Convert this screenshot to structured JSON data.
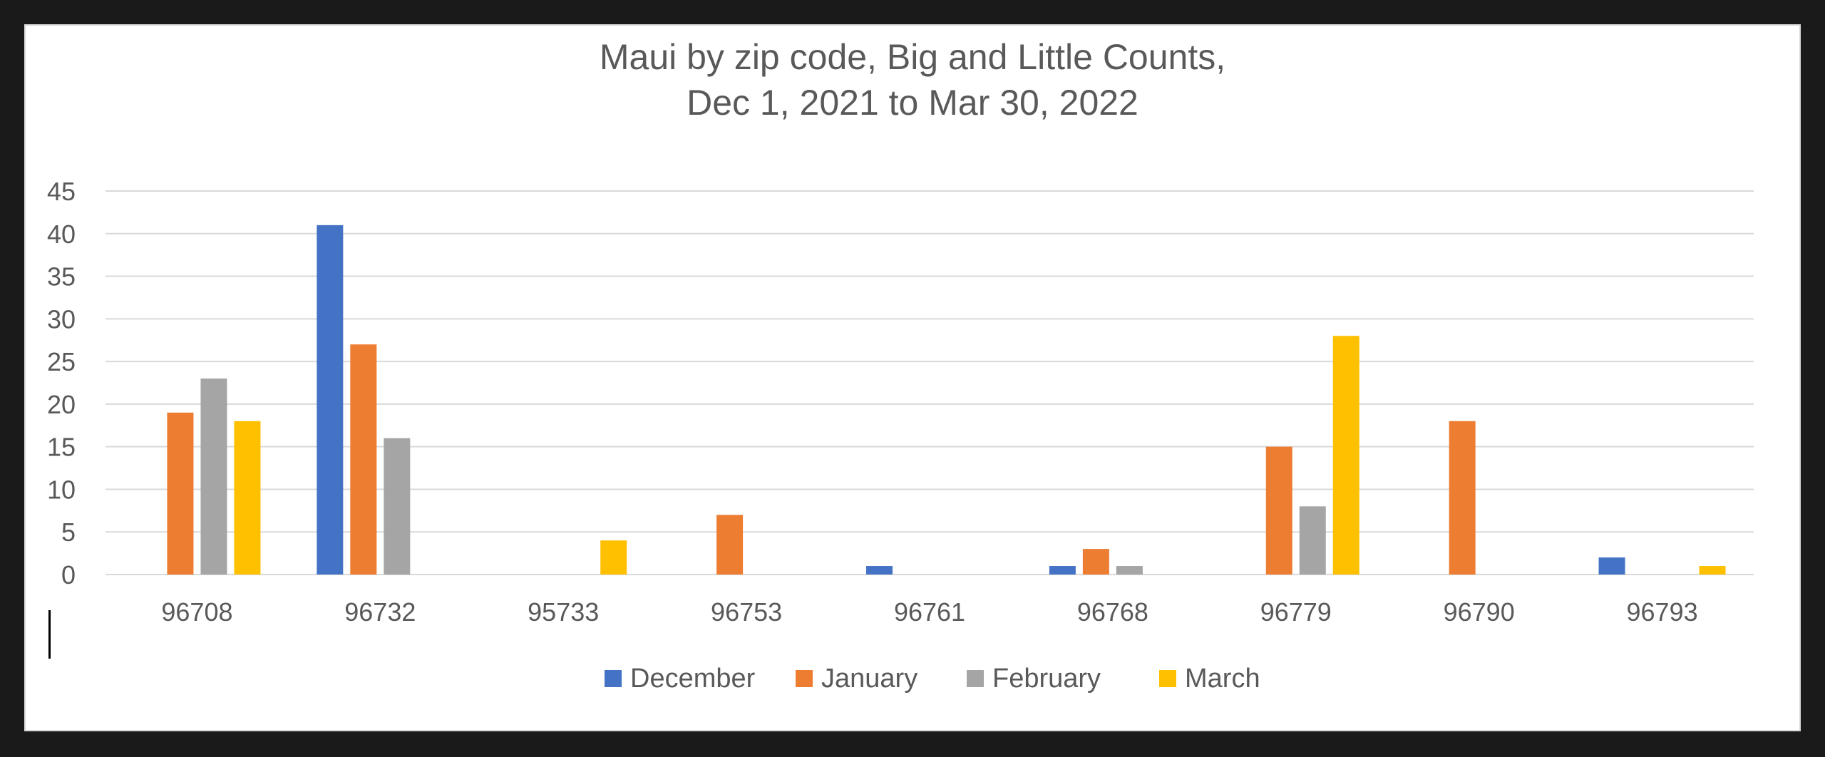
{
  "colors": {
    "December": "#4472c4",
    "January": "#ed7d31",
    "February": "#a5a5a5",
    "March": "#ffc000",
    "gridline": "#d9d9d9",
    "text": "#595959",
    "frame_background": "#1a1a1a"
  },
  "chart_data": {
    "type": "bar",
    "title_line1": "Maui by zip code, Big and Little Counts,",
    "title_line2": "Dec 1, 2021 to Mar 30, 2022",
    "xlabel": "",
    "ylabel": "",
    "categories": [
      "96708",
      "96732",
      "95733",
      "96753",
      "96761",
      "96768",
      "96779",
      "96790",
      "96793"
    ],
    "series": [
      {
        "name": "December",
        "values": [
          0,
          41,
          0,
          0,
          1,
          1,
          0,
          0,
          2
        ]
      },
      {
        "name": "January",
        "values": [
          19,
          27,
          0,
          7,
          0,
          3,
          15,
          18,
          0
        ]
      },
      {
        "name": "February",
        "values": [
          23,
          16,
          0,
          0,
          0,
          1,
          8,
          0,
          0
        ]
      },
      {
        "name": "March",
        "values": [
          18,
          0,
          4,
          0,
          0,
          0,
          28,
          0,
          1
        ]
      }
    ],
    "yticks": [
      0,
      5,
      10,
      15,
      20,
      25,
      30,
      35,
      40,
      45
    ],
    "ylim": [
      0,
      45
    ],
    "grid": true,
    "legend_position": "bottom"
  }
}
